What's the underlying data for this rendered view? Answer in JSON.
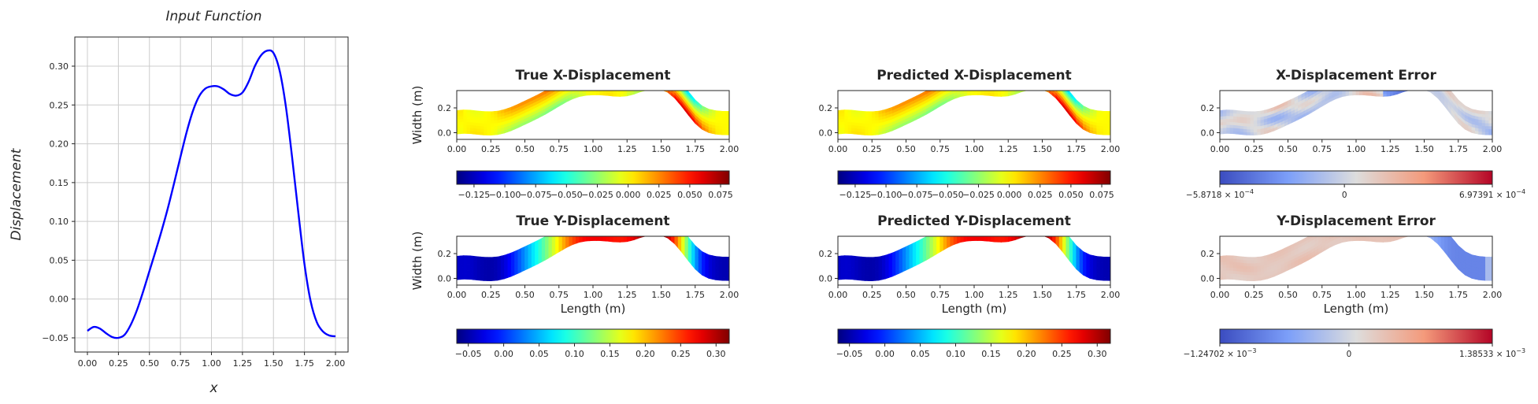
{
  "chart_data": [
    {
      "id": "input",
      "type": "line",
      "title": "Input Function",
      "xlabel": "x",
      "ylabel": "Displacement",
      "xlim": [
        -0.1,
        2.1
      ],
      "ylim": [
        -0.068,
        0.338
      ],
      "xticks": [
        "0.00",
        "0.25",
        "0.50",
        "0.75",
        "1.00",
        "1.25",
        "1.50",
        "1.75",
        "2.00"
      ],
      "yticks": [
        "-0.05",
        "0.00",
        "0.05",
        "0.10",
        "0.15",
        "0.20",
        "0.25",
        "0.30"
      ],
      "grid": true,
      "series": [
        {
          "name": "input",
          "color": "#0000ff",
          "x": [
            0.0,
            0.05,
            0.1,
            0.15,
            0.2,
            0.25,
            0.3,
            0.35,
            0.4,
            0.45,
            0.5,
            0.55,
            0.6,
            0.65,
            0.7,
            0.75,
            0.8,
            0.85,
            0.9,
            0.95,
            1.0,
            1.05,
            1.1,
            1.15,
            1.2,
            1.25,
            1.3,
            1.35,
            1.4,
            1.45,
            1.5,
            1.55,
            1.6,
            1.65,
            1.7,
            1.75,
            1.8,
            1.85,
            1.9,
            1.95,
            2.0
          ],
          "y": [
            -0.041,
            -0.036,
            -0.038,
            -0.044,
            -0.049,
            -0.05,
            -0.046,
            -0.033,
            -0.014,
            0.01,
            0.036,
            0.062,
            0.089,
            0.118,
            0.15,
            0.183,
            0.215,
            0.242,
            0.261,
            0.271,
            0.274,
            0.274,
            0.27,
            0.264,
            0.262,
            0.266,
            0.28,
            0.3,
            0.314,
            0.32,
            0.317,
            0.294,
            0.248,
            0.183,
            0.112,
            0.045,
            -0.003,
            -0.03,
            -0.042,
            -0.047,
            -0.048
          ]
        }
      ]
    },
    {
      "id": "true_x",
      "type": "heatmap",
      "title": "True X-Displacement",
      "ylabel": "Width (m)",
      "xlabel": "",
      "colormap": "jet",
      "vmin": -0.139,
      "vmax": 0.082,
      "xticks": [
        "0.00",
        "0.25",
        "0.50",
        "0.75",
        "1.00",
        "1.25",
        "1.50",
        "1.75",
        "2.00"
      ],
      "yticks": [
        "0.0",
        "0.2"
      ],
      "colorbar_ticks": [
        "-0.125",
        "-0.100",
        "-0.075",
        "-0.050",
        "-0.025",
        "0.000",
        "0.025",
        "0.050",
        "0.075"
      ],
      "field": "x"
    },
    {
      "id": "pred_x",
      "type": "heatmap",
      "title": "Predicted X-Displacement",
      "ylabel": "",
      "xlabel": "",
      "colormap": "jet",
      "vmin": -0.139,
      "vmax": 0.082,
      "xticks": [
        "0.00",
        "0.25",
        "0.50",
        "0.75",
        "1.00",
        "1.25",
        "1.50",
        "1.75",
        "2.00"
      ],
      "yticks": [
        "0.0",
        "0.2"
      ],
      "colorbar_ticks": [
        "-0.125",
        "-0.100",
        "-0.075",
        "-0.050",
        "-0.025",
        "0.000",
        "0.025",
        "0.050",
        "0.075"
      ],
      "field": "x"
    },
    {
      "id": "err_x",
      "type": "heatmap",
      "title": "X-Displacement Error",
      "ylabel": "",
      "xlabel": "",
      "colormap": "coolwarm",
      "vmin": -0.00058718,
      "vmax": 0.000697391,
      "xticks": [
        "0.00",
        "0.25",
        "0.50",
        "0.75",
        "1.00",
        "1.25",
        "1.50",
        "1.75",
        "2.00"
      ],
      "yticks": [
        "0.0",
        "0.2"
      ],
      "colorbar_labels": {
        "min": "−5.8718 × 10",
        "min_exp": "−4",
        "zero": "0",
        "max": "6.97391 × 10",
        "max_exp": "−4"
      },
      "field": "ex"
    },
    {
      "id": "true_y",
      "type": "heatmap",
      "title": "True Y-Displacement",
      "ylabel": "Width (m)",
      "xlabel": "Length (m)",
      "colormap": "jet",
      "vmin": -0.0663,
      "vmax": 0.3186,
      "xticks": [
        "0.00",
        "0.25",
        "0.50",
        "0.75",
        "1.00",
        "1.25",
        "1.50",
        "1.75",
        "2.00"
      ],
      "yticks": [
        "0.0",
        "0.2"
      ],
      "colorbar_ticks": [
        "-0.05",
        "0.00",
        "0.05",
        "0.10",
        "0.15",
        "0.20",
        "0.25",
        "0.30"
      ],
      "field": "y"
    },
    {
      "id": "pred_y",
      "type": "heatmap",
      "title": "Predicted Y-Displacement",
      "ylabel": "",
      "xlabel": "Length (m)",
      "colormap": "jet",
      "vmin": -0.0663,
      "vmax": 0.3186,
      "xticks": [
        "0.00",
        "0.25",
        "0.50",
        "0.75",
        "1.00",
        "1.25",
        "1.50",
        "1.75",
        "2.00"
      ],
      "yticks": [
        "0.0",
        "0.2"
      ],
      "colorbar_ticks": [
        "-0.05",
        "0.00",
        "0.05",
        "0.10",
        "0.15",
        "0.20",
        "0.25",
        "0.30"
      ],
      "field": "y"
    },
    {
      "id": "err_y",
      "type": "heatmap",
      "title": "Y-Displacement Error",
      "ylabel": "",
      "xlabel": "Length (m)",
      "colormap": "coolwarm",
      "vmin": -0.00124702,
      "vmax": 0.00138533,
      "xticks": [
        "0.00",
        "0.25",
        "0.50",
        "0.75",
        "1.00",
        "1.25",
        "1.50",
        "1.75",
        "2.00"
      ],
      "yticks": [
        "0.0",
        "0.2"
      ],
      "colorbar_labels": {
        "min": "−1.24702 × 10",
        "min_exp": "−3",
        "zero": "0",
        "max": "1.38533 × 10",
        "max_exp": "−3"
      },
      "field": "ey"
    }
  ],
  "beam_domain": {
    "xlim": [
      0.0,
      2.0
    ],
    "ylim": [
      -0.03,
      0.33
    ],
    "thickness": 0.2
  }
}
